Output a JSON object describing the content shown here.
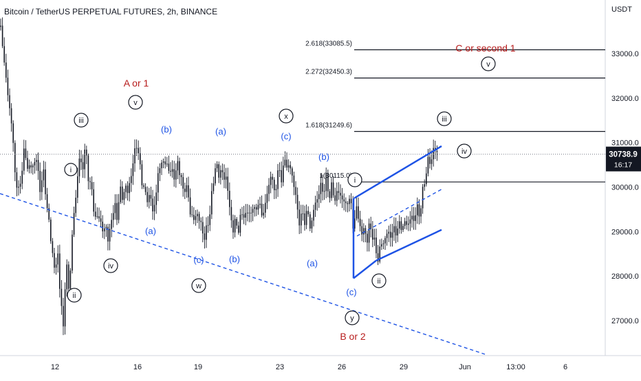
{
  "header": {
    "symbol_title": "Bitcoin / TetherUS PERPETUAL FUTURES, 2h, BINANCE",
    "currency": "USDT"
  },
  "colors": {
    "candle": "#131722",
    "wave_major": "#131722",
    "wave_blue": "#1e53e5",
    "wave_red": "#b71c1c",
    "level_line": "#131722",
    "price_tag_bg": "#131722",
    "price_tag_text": "#ffffff",
    "grid_text": "#131722"
  },
  "price_axis": {
    "ticks": [
      "33000.0",
      "32000.0",
      "31000.0",
      "30000.0",
      "29000.0",
      "28000.0",
      "27000.0"
    ]
  },
  "time_axis": {
    "ticks": [
      "12",
      "16",
      "19",
      "23",
      "26",
      "29",
      "Jun",
      "13:00",
      "6"
    ]
  },
  "price_tag": {
    "price": "30738.9",
    "countdown": "16:17"
  },
  "fib_levels": [
    {
      "label": "2.618(33085.5)",
      "price": 33085.5
    },
    {
      "label": "2.272(32450.3)",
      "price": 32450.3
    },
    {
      "label": "1.618(31249.6)",
      "price": 31249.6
    },
    {
      "label": "1(30115.0)",
      "price": 30115.0
    }
  ],
  "annotations": {
    "red": [
      "A or 1",
      "B or 2",
      "C or second 1"
    ],
    "circled": [
      "iii",
      "v",
      "ii",
      "iv",
      "w",
      "x",
      "y",
      "i",
      "ii",
      "iii",
      "iv",
      "v"
    ],
    "blue": [
      "(b)",
      "(a)",
      "(a)",
      "(c)",
      "(b)",
      "(c)",
      "(b)",
      "(a)",
      "(c)"
    ]
  },
  "chart_data": {
    "type": "candlestick",
    "title": "Bitcoin / TetherUS PERPETUAL FUTURES, 2h, BINANCE",
    "ylabel": "USDT",
    "ylim": [
      26300,
      33900
    ],
    "current_price": 30738.9,
    "path_points": [
      [
        0,
        33600
      ],
      [
        4,
        33200
      ],
      [
        10,
        32200
      ],
      [
        16,
        31600
      ],
      [
        22,
        30300
      ],
      [
        28,
        29800
      ],
      [
        34,
        30800
      ],
      [
        40,
        30500
      ],
      [
        46,
        30400
      ],
      [
        52,
        30700
      ],
      [
        58,
        30000
      ],
      [
        64,
        30300
      ],
      [
        70,
        29300
      ],
      [
        76,
        28600
      ],
      [
        80,
        28000
      ],
      [
        84,
        28600
      ],
      [
        88,
        27400
      ],
      [
        92,
        26900
      ],
      [
        96,
        28300
      ],
      [
        100,
        27700
      ],
      [
        104,
        28600
      ],
      [
        108,
        29500
      ],
      [
        112,
        30100
      ],
      [
        116,
        30700
      ],
      [
        120,
        30400
      ],
      [
        124,
        30900
      ],
      [
        128,
        30300
      ],
      [
        132,
        30000
      ],
      [
        136,
        29600
      ],
      [
        140,
        29200
      ],
      [
        145,
        29400
      ],
      [
        150,
        28900
      ],
      [
        154,
        29200
      ],
      [
        158,
        28700
      ],
      [
        162,
        29300
      ],
      [
        166,
        29600
      ],
      [
        170,
        29300
      ],
      [
        174,
        30000
      ],
      [
        178,
        29700
      ],
      [
        182,
        30100
      ],
      [
        186,
        29800
      ],
      [
        190,
        30300
      ],
      [
        194,
        30500
      ],
      [
        198,
        31100
      ],
      [
        202,
        30600
      ],
      [
        206,
        30200
      ],
      [
        210,
        29900
      ],
      [
        214,
        29700
      ],
      [
        218,
        29900
      ],
      [
        222,
        29400
      ],
      [
        226,
        29800
      ],
      [
        230,
        30200
      ],
      [
        234,
        30700
      ],
      [
        238,
        30400
      ],
      [
        242,
        30700
      ],
      [
        246,
        30200
      ],
      [
        250,
        30500
      ],
      [
        254,
        30100
      ],
      [
        258,
        30600
      ],
      [
        262,
        30300
      ],
      [
        266,
        29900
      ],
      [
        270,
        30100
      ],
      [
        274,
        29700
      ],
      [
        278,
        29400
      ],
      [
        282,
        29200
      ],
      [
        286,
        29500
      ],
      [
        290,
        29200
      ],
      [
        294,
        29100
      ],
      [
        298,
        28800
      ],
      [
        302,
        29200
      ],
      [
        306,
        29500
      ],
      [
        310,
        30100
      ],
      [
        314,
        30600
      ],
      [
        318,
        30200
      ],
      [
        322,
        30500
      ],
      [
        326,
        30100
      ],
      [
        330,
        30300
      ],
      [
        334,
        29400
      ],
      [
        338,
        29100
      ],
      [
        342,
        29200
      ],
      [
        346,
        29000
      ],
      [
        350,
        29400
      ],
      [
        354,
        29300
      ],
      [
        358,
        29500
      ],
      [
        362,
        29300
      ],
      [
        366,
        29600
      ],
      [
        370,
        29400
      ],
      [
        374,
        29700
      ],
      [
        378,
        29500
      ],
      [
        382,
        29400
      ],
      [
        386,
        29600
      ],
      [
        390,
        30000
      ],
      [
        394,
        30300
      ],
      [
        398,
        29900
      ],
      [
        402,
        30100
      ],
      [
        406,
        30400
      ],
      [
        410,
        30200
      ],
      [
        414,
        30600
      ],
      [
        418,
        30500
      ],
      [
        422,
        30400
      ],
      [
        426,
        30200
      ],
      [
        430,
        29800
      ],
      [
        434,
        29200
      ],
      [
        438,
        29400
      ],
      [
        442,
        29200
      ],
      [
        446,
        29500
      ],
      [
        450,
        29100
      ],
      [
        454,
        29300
      ],
      [
        458,
        29600
      ],
      [
        462,
        29800
      ],
      [
        466,
        30000
      ],
      [
        470,
        29900
      ],
      [
        474,
        30200
      ],
      [
        478,
        29800
      ],
      [
        482,
        30000
      ],
      [
        486,
        29700
      ],
      [
        490,
        29900
      ],
      [
        494,
        29800
      ],
      [
        498,
        29800
      ],
      [
        502,
        29500
      ],
      [
        506,
        29800
      ],
      [
        510,
        29600
      ],
      [
        514,
        29100
      ],
      [
        518,
        29500
      ],
      [
        522,
        29300
      ],
      [
        526,
        28900
      ],
      [
        530,
        29100
      ],
      [
        534,
        28800
      ],
      [
        538,
        29200
      ],
      [
        542,
        28900
      ],
      [
        546,
        28600
      ],
      [
        550,
        28400
      ],
      [
        554,
        28700
      ],
      [
        558,
        28800
      ],
      [
        562,
        28900
      ],
      [
        566,
        29000
      ],
      [
        570,
        28900
      ],
      [
        574,
        29100
      ],
      [
        578,
        29000
      ],
      [
        582,
        29200
      ],
      [
        586,
        29100
      ],
      [
        590,
        29200
      ],
      [
        594,
        29200
      ],
      [
        598,
        29300
      ],
      [
        602,
        29300
      ],
      [
        606,
        29500
      ],
      [
        610,
        29400
      ],
      [
        614,
        29800
      ],
      [
        618,
        30200
      ],
      [
        622,
        30600
      ],
      [
        626,
        30500
      ],
      [
        630,
        30900
      ],
      [
        634,
        30700
      ],
      [
        636,
        30800
      ]
    ]
  }
}
